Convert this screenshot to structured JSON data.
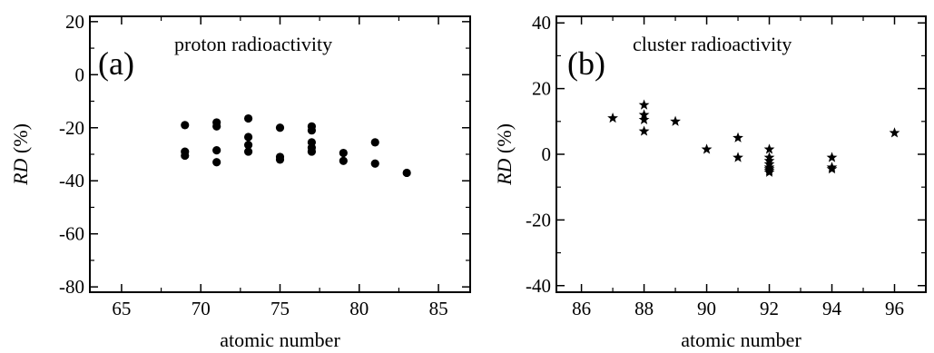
{
  "chart_data": [
    {
      "type": "scatter",
      "panel_label": "(a)",
      "annotation": "proton radioactivity",
      "xlabel": "atomic number",
      "ylabel_italic": "RD",
      "ylabel_rest": " (%)",
      "xlim": [
        63,
        87
      ],
      "ylim": [
        -82,
        22
      ],
      "x_major_ticks": [
        65,
        70,
        75,
        80,
        85
      ],
      "x_tick_labels": [
        "65",
        "70",
        "75",
        "80",
        "85"
      ],
      "x_minor_ticks": [
        67.5,
        72.5,
        77.5,
        82.5
      ],
      "y_major_ticks": [
        -80,
        -60,
        -40,
        -20,
        0,
        20
      ],
      "y_tick_labels": [
        "-80",
        "-60",
        "-40",
        "-20",
        "0",
        "20"
      ],
      "y_minor_ticks": [
        -70,
        -50,
        -30,
        -10,
        10
      ],
      "marker": "circle",
      "grid": false,
      "points": [
        {
          "x": 69,
          "y": -19
        },
        {
          "x": 69,
          "y": -29
        },
        {
          "x": 69,
          "y": -30.5
        },
        {
          "x": 71,
          "y": -18
        },
        {
          "x": 71,
          "y": -19.5
        },
        {
          "x": 71,
          "y": -28.5
        },
        {
          "x": 71,
          "y": -33
        },
        {
          "x": 73,
          "y": -16.5
        },
        {
          "x": 73,
          "y": -23.5
        },
        {
          "x": 73,
          "y": -26.5
        },
        {
          "x": 73,
          "y": -29
        },
        {
          "x": 75,
          "y": -20
        },
        {
          "x": 75,
          "y": -31
        },
        {
          "x": 75,
          "y": -32
        },
        {
          "x": 77,
          "y": -19.5
        },
        {
          "x": 77,
          "y": -21
        },
        {
          "x": 77,
          "y": -25.5
        },
        {
          "x": 77,
          "y": -27.5
        },
        {
          "x": 77,
          "y": -29
        },
        {
          "x": 79,
          "y": -29.5
        },
        {
          "x": 79,
          "y": -32.5
        },
        {
          "x": 81,
          "y": -25.5
        },
        {
          "x": 81,
          "y": -33.5
        },
        {
          "x": 83,
          "y": -37
        }
      ]
    },
    {
      "type": "scatter",
      "panel_label": "(b)",
      "annotation": "cluster radioactivity",
      "xlabel": "atomic number",
      "ylabel_italic": "RD",
      "ylabel_rest": " (%)",
      "xlim": [
        85.2,
        97
      ],
      "ylim": [
        -42,
        42
      ],
      "x_major_ticks": [
        86,
        88,
        90,
        92,
        94,
        96
      ],
      "x_tick_labels": [
        "86",
        "88",
        "90",
        "92",
        "94",
        "96"
      ],
      "x_minor_ticks": [
        87,
        89,
        91,
        93,
        95
      ],
      "y_major_ticks": [
        -40,
        -20,
        0,
        20,
        40
      ],
      "y_tick_labels": [
        "-40",
        "-20",
        "0",
        "20",
        "40"
      ],
      "y_minor_ticks": [
        -30,
        -10,
        10,
        30
      ],
      "marker": "star",
      "grid": false,
      "points": [
        {
          "x": 87,
          "y": 11
        },
        {
          "x": 88,
          "y": 15
        },
        {
          "x": 88,
          "y": 12
        },
        {
          "x": 88,
          "y": 10.5
        },
        {
          "x": 88,
          "y": 7
        },
        {
          "x": 89,
          "y": 10
        },
        {
          "x": 90,
          "y": 1.5
        },
        {
          "x": 91,
          "y": 5
        },
        {
          "x": 91,
          "y": -1
        },
        {
          "x": 92,
          "y": 1.5
        },
        {
          "x": 92,
          "y": -1
        },
        {
          "x": 92,
          "y": -2
        },
        {
          "x": 92,
          "y": -3
        },
        {
          "x": 92,
          "y": -4
        },
        {
          "x": 92,
          "y": -4.5
        },
        {
          "x": 92,
          "y": -5
        },
        {
          "x": 92,
          "y": -5.5
        },
        {
          "x": 94,
          "y": -1
        },
        {
          "x": 94,
          "y": -4
        },
        {
          "x": 94,
          "y": -4.5
        },
        {
          "x": 96,
          "y": 6.5
        }
      ]
    }
  ]
}
